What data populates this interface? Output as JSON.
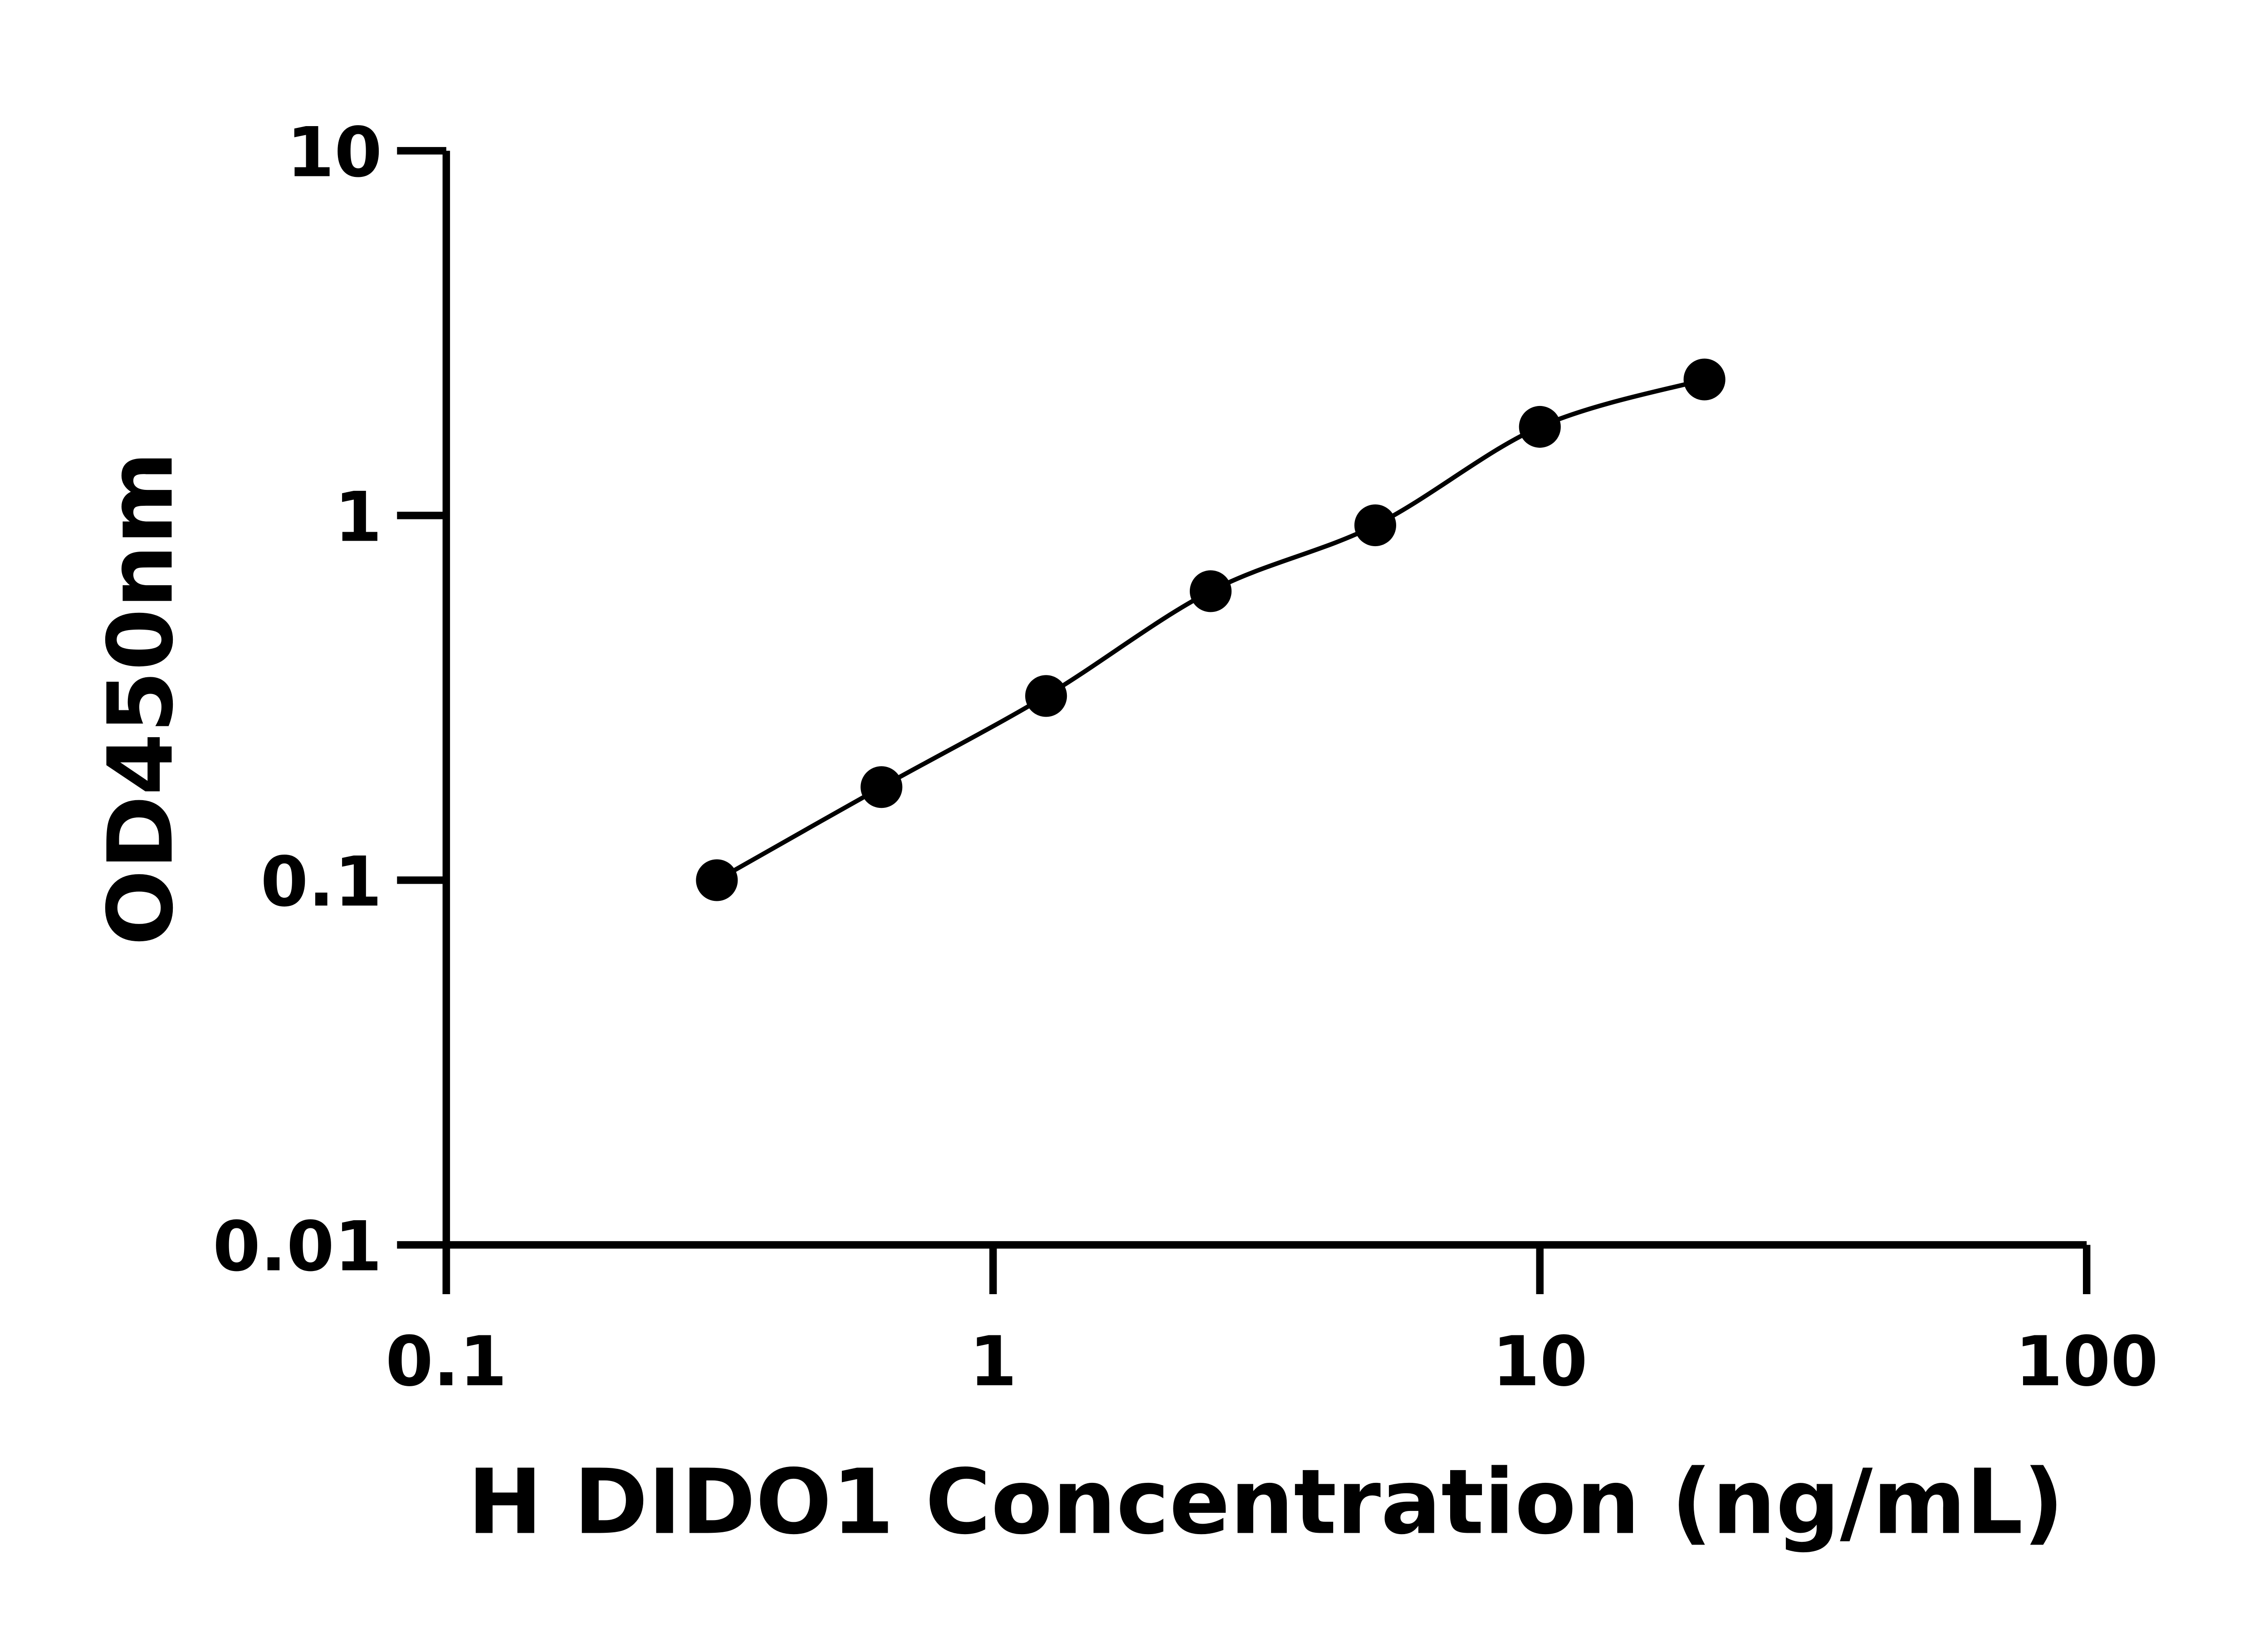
{
  "chart_data": {
    "type": "scatter",
    "title": "",
    "xlabel": "H DIDO1 Concentration (ng/mL)",
    "ylabel": "OD450nm",
    "x_scale": "log",
    "y_scale": "log",
    "xlim": [
      0.1,
      100
    ],
    "ylim": [
      0.01,
      10
    ],
    "x_ticks": [
      "0.1",
      "1",
      "10",
      "100"
    ],
    "y_ticks": [
      "0.01",
      "0.1",
      "1",
      "10"
    ],
    "grid": false,
    "legend": "none",
    "series": [
      {
        "x": [
          0.3125,
          0.625,
          1.25,
          2.5,
          5,
          10,
          20
        ],
        "y": [
          0.1,
          0.18,
          0.32,
          0.62,
          0.94,
          1.75,
          2.36
        ],
        "marker": "circle",
        "color": "#000000",
        "fit_line": true
      }
    ]
  }
}
